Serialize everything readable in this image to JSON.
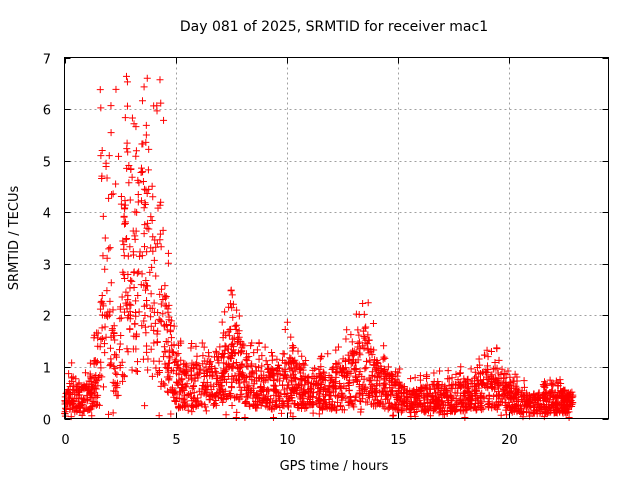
{
  "chart_data": {
    "type": "scatter",
    "title": "Day 081 of 2025, SRMTID for receiver mac1",
    "xlabel": "GPS time / hours",
    "ylabel": "SRMTID / TECUs",
    "xlim": [
      0,
      24.5
    ],
    "ylim": [
      0,
      7
    ],
    "xticks": [
      0,
      5,
      10,
      15,
      20
    ],
    "yticks": [
      0,
      1,
      2,
      3,
      4,
      5,
      6,
      7
    ],
    "grid": true,
    "marker": "+",
    "marker_color": "#ff0000",
    "x_data_end": 22.9,
    "series": [
      {
        "name": "SRMTID",
        "points_profile": [
          {
            "x": 0.0,
            "y": 0.3
          },
          {
            "x": 0.3,
            "y": 0.6
          },
          {
            "x": 0.6,
            "y": 0.4
          },
          {
            "x": 1.0,
            "y": 0.5
          },
          {
            "x": 1.4,
            "y": 0.9
          },
          {
            "x": 1.7,
            "y": 1.8
          },
          {
            "x": 1.9,
            "y": 4.0
          },
          {
            "x": 2.2,
            "y": 1.2
          },
          {
            "x": 2.5,
            "y": 2.0
          },
          {
            "x": 2.9,
            "y": 4.5
          },
          {
            "x": 3.2,
            "y": 2.8
          },
          {
            "x": 3.5,
            "y": 4.2
          },
          {
            "x": 3.9,
            "y": 3.0
          },
          {
            "x": 4.3,
            "y": 2.0
          },
          {
            "x": 4.7,
            "y": 1.8
          },
          {
            "x": 5.0,
            "y": 0.8
          },
          {
            "x": 6.0,
            "y": 0.8
          },
          {
            "x": 7.0,
            "y": 1.0
          },
          {
            "x": 7.6,
            "y": 1.4
          },
          {
            "x": 8.5,
            "y": 0.8
          },
          {
            "x": 9.5,
            "y": 0.7
          },
          {
            "x": 10.0,
            "y": 1.0
          },
          {
            "x": 11.0,
            "y": 0.6
          },
          {
            "x": 12.0,
            "y": 0.7
          },
          {
            "x": 13.0,
            "y": 1.0
          },
          {
            "x": 13.5,
            "y": 1.3
          },
          {
            "x": 14.5,
            "y": 0.7
          },
          {
            "x": 15.5,
            "y": 0.4
          },
          {
            "x": 16.5,
            "y": 0.5
          },
          {
            "x": 17.5,
            "y": 0.5
          },
          {
            "x": 18.5,
            "y": 0.6
          },
          {
            "x": 19.3,
            "y": 0.8
          },
          {
            "x": 20.0,
            "y": 0.5
          },
          {
            "x": 21.0,
            "y": 0.35
          },
          {
            "x": 22.0,
            "y": 0.4
          },
          {
            "x": 22.9,
            "y": 0.4
          }
        ]
      }
    ]
  }
}
